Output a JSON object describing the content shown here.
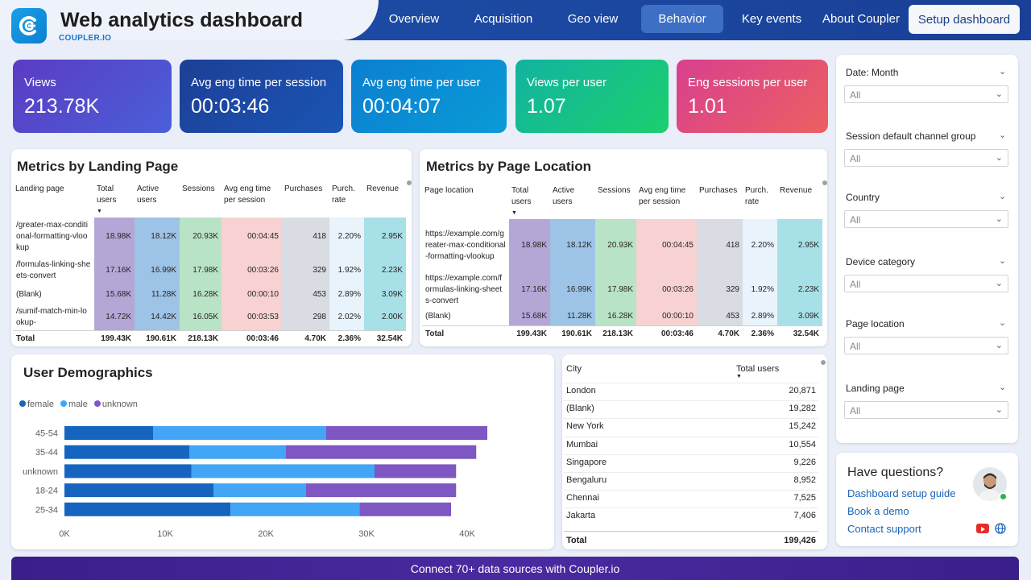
{
  "header": {
    "title": "Web analytics dashboard",
    "brand": "COUPLER.IO",
    "nav": [
      "Overview",
      "Acquisition",
      "Geo view",
      "Behavior",
      "Key events",
      "About Coupler"
    ],
    "active_nav": "Behavior",
    "setup_button": "Setup dashboard"
  },
  "kpis": [
    {
      "label": "Views",
      "value": "213.78K"
    },
    {
      "label": "Avg eng time per session",
      "value": "00:03:46"
    },
    {
      "label": "Avg eng time per user",
      "value": "00:04:07"
    },
    {
      "label": "Views per user",
      "value": "1.07"
    },
    {
      "label": "Eng sessions per user",
      "value": "1.01"
    }
  ],
  "landing": {
    "title": "Metrics by Landing Page",
    "columns": [
      "Landing page",
      "Total users",
      "Active users",
      "Sessions",
      "Avg eng time per session",
      "Purchases",
      "Purch. rate",
      "Revenue"
    ],
    "rows": [
      [
        "/greater-max-conditional-formatting-vlookup",
        "18.98K",
        "18.12K",
        "20.93K",
        "00:04:45",
        "418",
        "2.20%",
        "2.95K"
      ],
      [
        "/formulas-linking-sheets-convert",
        "17.16K",
        "16.99K",
        "17.98K",
        "00:03:26",
        "329",
        "1.92%",
        "2.23K"
      ],
      [
        "(Blank)",
        "15.68K",
        "11.28K",
        "16.28K",
        "00:00:10",
        "453",
        "2.89%",
        "3.09K"
      ],
      [
        "/sumif-match-min-lookup-",
        "14.72K",
        "14.42K",
        "16.05K",
        "00:03:53",
        "298",
        "2.02%",
        "2.00K"
      ]
    ],
    "total": [
      "Total",
      "199.43K",
      "190.61K",
      "218.13K",
      "00:03:46",
      "4.70K",
      "2.36%",
      "32.54K"
    ]
  },
  "location": {
    "title": "Metrics by Page Location",
    "columns": [
      "Page location",
      "Total users",
      "Active users",
      "Sessions",
      "Avg eng time per session",
      "Purchases",
      "Purch. rate",
      "Revenue"
    ],
    "rows": [
      [
        "https://example.com/greater-max-conditional-formatting-vlookup",
        "18.98K",
        "18.12K",
        "20.93K",
        "00:04:45",
        "418",
        "2.20%",
        "2.95K"
      ],
      [
        "https://example.com/formulas-linking-sheets-convert",
        "17.16K",
        "16.99K",
        "17.98K",
        "00:03:26",
        "329",
        "1.92%",
        "2.23K"
      ],
      [
        "(Blank)",
        "15.68K",
        "11.28K",
        "16.28K",
        "00:00:10",
        "453",
        "2.89%",
        "3.09K"
      ]
    ],
    "total": [
      "Total",
      "199.43K",
      "190.61K",
      "218.13K",
      "00:03:46",
      "4.70K",
      "2.36%",
      "32.54K"
    ]
  },
  "colors": {
    "col1": "#b4a7d6",
    "col2": "#9dc3e6",
    "col3": "#b9e3c6",
    "col4": "#f8d2d2",
    "col5": "#d9dce3",
    "col6": "#e8f3fb",
    "col7": "#a8e0e8",
    "female": "#1565c0",
    "male": "#42a5f5",
    "unknown": "#7e57c2"
  },
  "chart_data": {
    "type": "bar",
    "orientation": "horizontal",
    "stacked": true,
    "title": "User Demographics",
    "categories": [
      "45-54",
      "35-44",
      "unknown",
      "18-24",
      "25-34"
    ],
    "series": [
      {
        "name": "female",
        "values": [
          8800,
          12400,
          12600,
          14800,
          16500
        ]
      },
      {
        "name": "male",
        "values": [
          17200,
          9600,
          18200,
          9200,
          12800
        ]
      },
      {
        "name": "unknown",
        "values": [
          16000,
          18900,
          8100,
          14900,
          9100
        ]
      }
    ],
    "xlim": [
      0,
      42000
    ],
    "xticks": [
      0,
      10000,
      20000,
      30000,
      40000
    ],
    "xtick_labels": [
      "0K",
      "10K",
      "20K",
      "30K",
      "40K"
    ],
    "legend": "top-left"
  },
  "cities": {
    "col_city": "City",
    "col_users": "Total users",
    "rows": [
      [
        "London",
        "20,871"
      ],
      [
        "(Blank)",
        "19,282"
      ],
      [
        "New York",
        "15,242"
      ],
      [
        "Mumbai",
        "10,554"
      ],
      [
        "Singapore",
        "9,226"
      ],
      [
        "Bengaluru",
        "8,952"
      ],
      [
        "Chennai",
        "7,525"
      ],
      [
        "Jakarta",
        "7,406"
      ]
    ],
    "total_label": "Total",
    "total_value": "199,426"
  },
  "filters": [
    {
      "label": "Date: Month",
      "value": "All"
    },
    {
      "label": "Session default channel group",
      "value": "All"
    },
    {
      "label": "Country",
      "value": "All"
    },
    {
      "label": "Device category",
      "value": "All"
    },
    {
      "label": "Page location",
      "value": "All"
    },
    {
      "label": "Landing page",
      "value": "All"
    }
  ],
  "help": {
    "title": "Have questions?",
    "links": [
      "Dashboard setup guide",
      "Book a demo",
      "Contact support"
    ]
  },
  "footer": "Connect 70+ data sources with Coupler.io"
}
